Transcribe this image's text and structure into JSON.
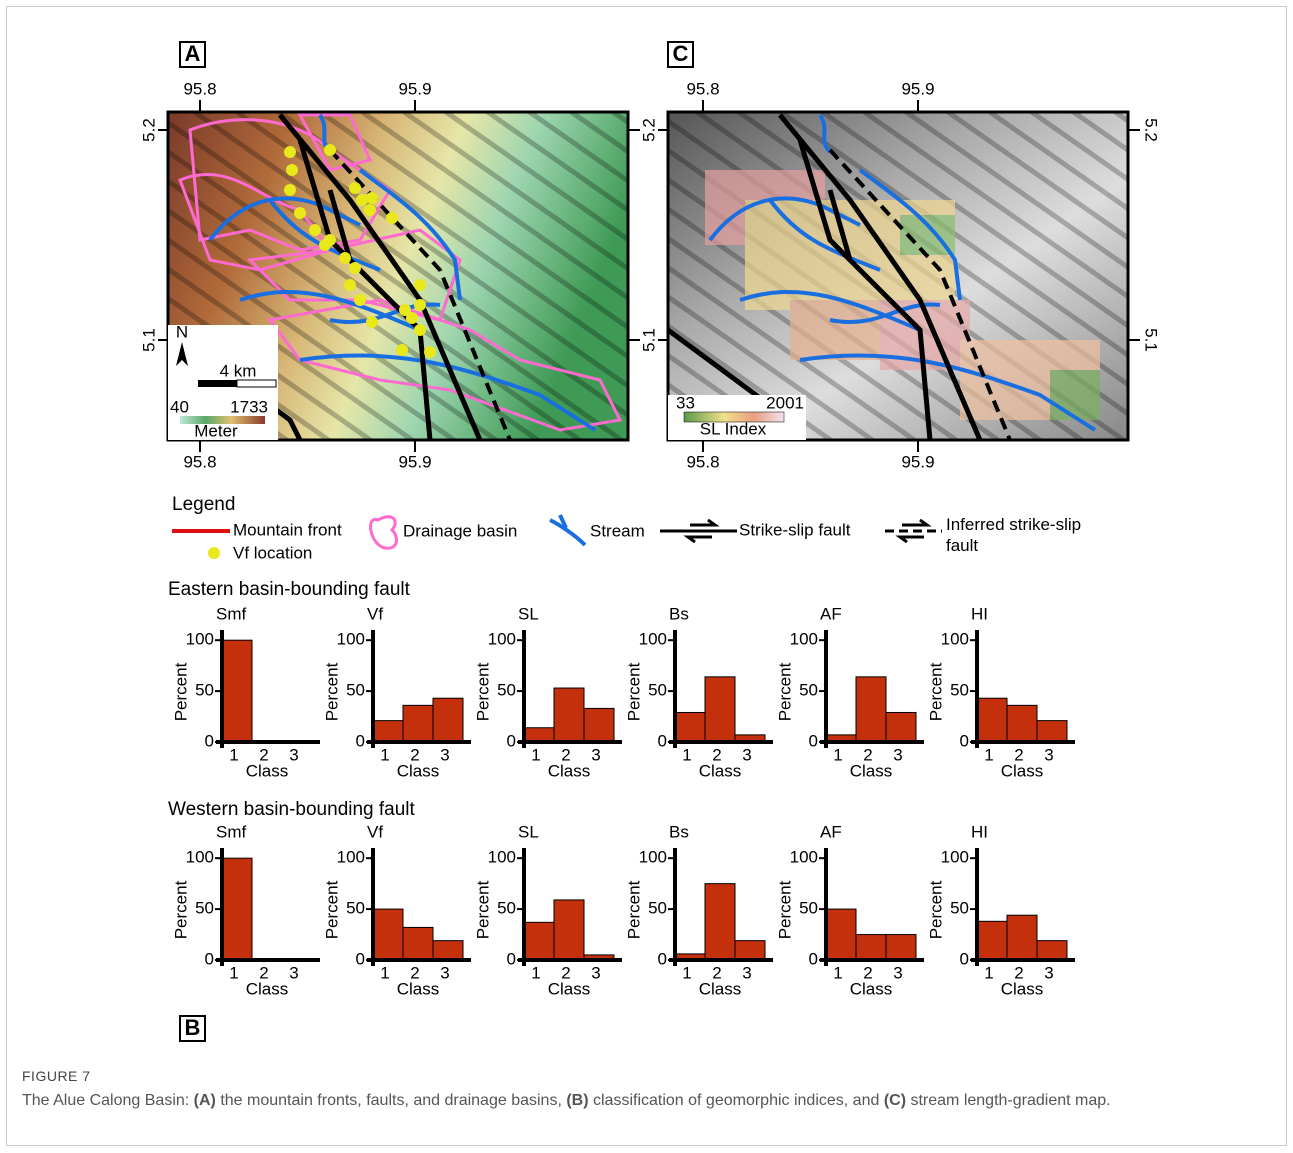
{
  "panel_a": {
    "label": "A",
    "x_ticks": [
      "95.8",
      "95.9"
    ],
    "y_ticks": [
      "5.2",
      "5.1"
    ],
    "north": "N",
    "scale": "4 km",
    "elev_min": "40",
    "elev_max": "1733",
    "elev_unit": "Meter"
  },
  "panel_c": {
    "label": "C",
    "x_ticks": [
      "95.8",
      "95.9"
    ],
    "y_ticks": [
      "5.2",
      "5.1"
    ],
    "sl_min": "33",
    "sl_max": "2001",
    "sl_title": "SL Index"
  },
  "legend": {
    "title": "Legend",
    "items": [
      "Mountain front",
      "Vf location",
      "Drainage basin",
      "Stream",
      "Strike-slip fault",
      "Inferred strike-slip fault"
    ]
  },
  "panel_b": {
    "label": "B",
    "groups": [
      "Eastern basin-bounding fault",
      "Western basin-bounding fault"
    ]
  },
  "caption": {
    "label": "FIGURE 7",
    "parts": [
      "The Alue Calong Basin: ",
      "(A)",
      " the mountain fronts, faults, and drainage basins, ",
      "(B)",
      " classification of geomorphic indices, and ",
      "(C)",
      " stream length-gradient map."
    ]
  },
  "chart_data": [
    {
      "type": "bar",
      "title": "Smf",
      "categories": [
        "1",
        "2",
        "3"
      ],
      "values": [
        100,
        0,
        0
      ],
      "color": "#c4300c",
      "ylim": [
        0,
        110
      ],
      "yticks": [
        0,
        50,
        100
      ],
      "xlabel": "Class",
      "ylabel": "Percent"
    },
    {
      "type": "bar",
      "title": "Vf",
      "categories": [
        "1",
        "2",
        "3"
      ],
      "values": [
        21,
        36,
        43
      ],
      "color": "#c4300c",
      "ylim": [
        0,
        110
      ],
      "yticks": [
        0,
        50,
        100
      ],
      "xlabel": "Class",
      "ylabel": "Percent"
    },
    {
      "type": "bar",
      "title": "SL",
      "categories": [
        "1",
        "2",
        "3"
      ],
      "values": [
        14,
        53,
        33
      ],
      "color": "#c4300c",
      "ylim": [
        0,
        110
      ],
      "yticks": [
        0,
        50,
        100
      ],
      "xlabel": "Class",
      "ylabel": "Percent"
    },
    {
      "type": "bar",
      "title": "Bs",
      "categories": [
        "1",
        "2",
        "3"
      ],
      "values": [
        29,
        64,
        7
      ],
      "color": "#c4300c",
      "ylim": [
        0,
        110
      ],
      "yticks": [
        0,
        50,
        100
      ],
      "xlabel": "Class",
      "ylabel": "Percent"
    },
    {
      "type": "bar",
      "title": "AF",
      "categories": [
        "1",
        "2",
        "3"
      ],
      "values": [
        7,
        64,
        29
      ],
      "color": "#c4300c",
      "ylim": [
        0,
        110
      ],
      "yticks": [
        0,
        50,
        100
      ],
      "xlabel": "Class",
      "ylabel": "Percent"
    },
    {
      "type": "bar",
      "title": "HI",
      "categories": [
        "1",
        "2",
        "3"
      ],
      "values": [
        43,
        36,
        21
      ],
      "color": "#c4300c",
      "ylim": [
        0,
        110
      ],
      "yticks": [
        0,
        50,
        100
      ],
      "xlabel": "Class",
      "ylabel": "Percent"
    },
    {
      "type": "bar",
      "title": "Smf",
      "categories": [
        "1",
        "2",
        "3"
      ],
      "values": [
        100,
        0,
        0
      ],
      "color": "#c4300c",
      "ylim": [
        0,
        110
      ],
      "yticks": [
        0,
        50,
        100
      ],
      "xlabel": "Class",
      "ylabel": "Percent"
    },
    {
      "type": "bar",
      "title": "Vf",
      "categories": [
        "1",
        "2",
        "3"
      ],
      "values": [
        50,
        32,
        19
      ],
      "color": "#c4300c",
      "ylim": [
        0,
        110
      ],
      "yticks": [
        0,
        50,
        100
      ],
      "xlabel": "Class",
      "ylabel": "Percent"
    },
    {
      "type": "bar",
      "title": "SL",
      "categories": [
        "1",
        "2",
        "3"
      ],
      "values": [
        37,
        59,
        5
      ],
      "color": "#c4300c",
      "ylim": [
        0,
        110
      ],
      "yticks": [
        0,
        50,
        100
      ],
      "xlabel": "Class",
      "ylabel": "Percent"
    },
    {
      "type": "bar",
      "title": "Bs",
      "categories": [
        "1",
        "2",
        "3"
      ],
      "values": [
        6,
        75,
        19
      ],
      "color": "#c4300c",
      "ylim": [
        0,
        110
      ],
      "yticks": [
        0,
        50,
        100
      ],
      "xlabel": "Class",
      "ylabel": "Percent"
    },
    {
      "type": "bar",
      "title": "AF",
      "categories": [
        "1",
        "2",
        "3"
      ],
      "values": [
        50,
        25,
        25
      ],
      "color": "#c4300c",
      "ylim": [
        0,
        110
      ],
      "yticks": [
        0,
        50,
        100
      ],
      "xlabel": "Class",
      "ylabel": "Percent"
    },
    {
      "type": "bar",
      "title": "HI",
      "categories": [
        "1",
        "2",
        "3"
      ],
      "values": [
        38,
        44,
        19
      ],
      "color": "#c4300c",
      "ylim": [
        0,
        110
      ],
      "yticks": [
        0,
        50,
        100
      ],
      "xlabel": "Class",
      "ylabel": "Percent"
    }
  ]
}
